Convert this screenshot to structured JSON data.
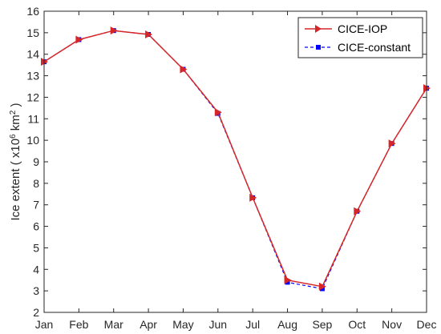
{
  "chart_data": {
    "type": "line",
    "categories": [
      "Jan",
      "Feb",
      "Mar",
      "Apr",
      "May",
      "Jun",
      "Jul",
      "Aug",
      "Sep",
      "Oct",
      "Nov",
      "Dec"
    ],
    "series": [
      {
        "name": "CICE-IOP",
        "values": [
          13.65,
          14.68,
          15.1,
          14.92,
          13.3,
          11.3,
          7.33,
          3.5,
          3.2,
          6.7,
          9.85,
          12.42
        ],
        "color": "#d62728",
        "line_style": "solid",
        "marker": "triangle-right"
      },
      {
        "name": "CICE-constant",
        "values": [
          13.65,
          14.68,
          15.1,
          14.92,
          13.3,
          11.25,
          7.33,
          3.4,
          3.1,
          6.7,
          9.85,
          12.42
        ],
        "color": "#0000ff",
        "line_style": "dashed",
        "marker": "square"
      }
    ],
    "ylim": [
      2,
      16
    ],
    "yticks": [
      2,
      3,
      4,
      5,
      6,
      7,
      8,
      9,
      10,
      11,
      12,
      13,
      14,
      15,
      16
    ],
    "ylabel_main": "Ice extent ( x10",
    "ylabel_exp1": "6",
    "ylabel_unit": " km",
    "ylabel_exp2": "2",
    "ylabel_end": " )",
    "xlabel": "",
    "title": "",
    "grid": false,
    "legend_position": "top-right"
  }
}
